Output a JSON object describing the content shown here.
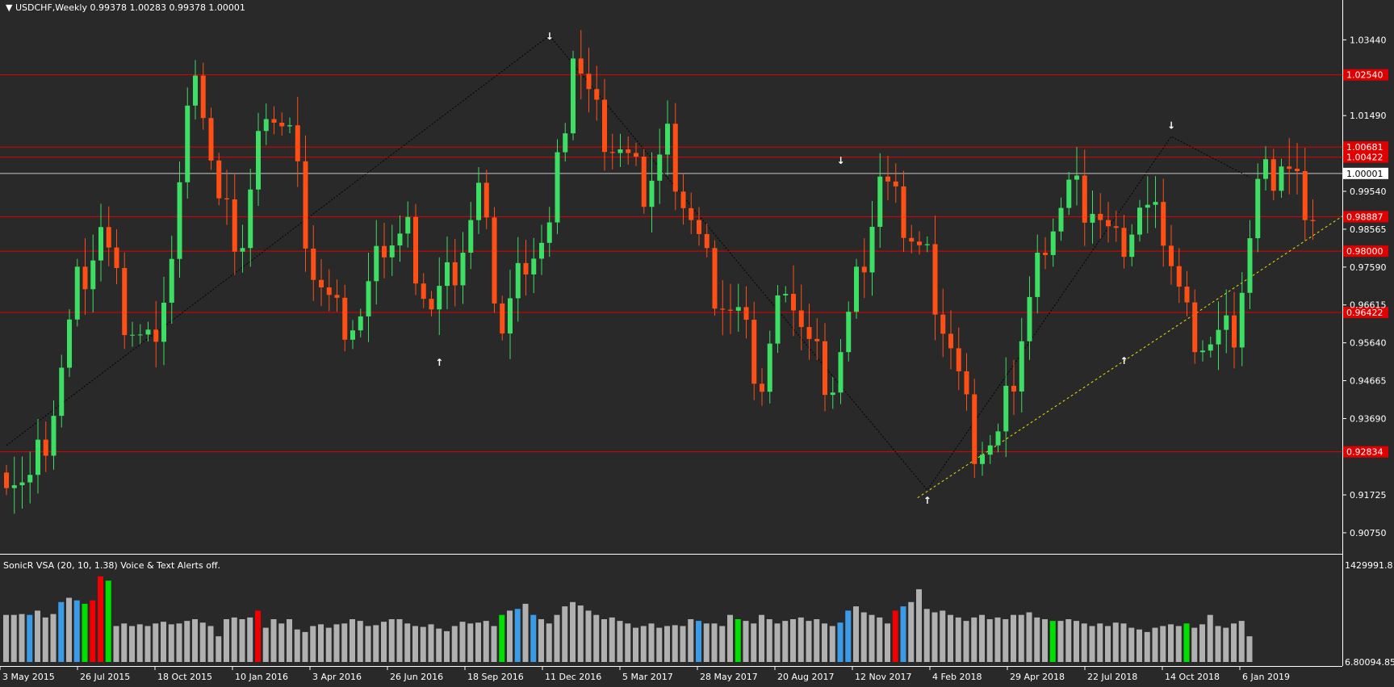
{
  "header": {
    "symbol_info": "USDCHF,Weekly  0.99378 1.00283 0.99378 1.00001"
  },
  "indicator": {
    "label": "SonicR VSA  (20, 10, 1.38)   Voice & Text Alerts off.",
    "scale_top": "1429991.8",
    "scale_bottom": "6.80094.85"
  },
  "colors": {
    "background": "#292929",
    "bull": "#3CDE63",
    "bear": "#FF4F14",
    "level_line": "#E00000",
    "level_label_bg": "#E00000",
    "price_line": "#C8C8C8",
    "volume_gray": "#B0B0B0",
    "volume_blue": "#3C9BE6",
    "volume_green": "#00E000",
    "volume_red": "#F00000",
    "trendline": "#E8E000",
    "zigzag": "#000000",
    "text": "#FFFFFF"
  },
  "chart_data": [
    {
      "type": "candlestick",
      "title": "USDCHF,Weekly",
      "ylim": [
        0.9025,
        1.0405
      ],
      "y_ticks": [
        "1.03440",
        "1.01490",
        "0.99540",
        "0.98565",
        "0.97590",
        "0.96615",
        "0.95640",
        "0.94665",
        "0.93690",
        "0.91725",
        "0.90750"
      ],
      "x_labels": [
        "3 May 2015",
        "26 Jul 2015",
        "18 Oct 2015",
        "10 Jan 2016",
        "3 Apr 2016",
        "26 Jun 2016",
        "18 Sep 2016",
        "11 Dec 2016",
        "5 Mar 2017",
        "28 May 2017",
        "20 Aug 2017",
        "12 Nov 2017",
        "4 Feb 2018",
        "29 Apr 2018",
        "22 Jul 2018",
        "14 Oct 2018",
        "6 Jan 2019"
      ],
      "anchor_closes": [
        0.925,
        0.92,
        0.94,
        0.97,
        0.985,
        0.962,
        0.955,
        0.978,
        1.03,
        0.99,
        0.982,
        1.02,
        1.01,
        0.975,
        0.962,
        0.962,
        0.982,
        0.984,
        0.965,
        0.976,
        0.994,
        0.96,
        0.98,
        0.985,
        1.032,
        1.013,
        1.005,
        0.995,
        1.008,
        0.988,
        0.97,
        0.962,
        0.945,
        0.975,
        0.955,
        0.946,
        0.97,
        0.998,
        0.987,
        0.977,
        0.955,
        0.93,
        0.93,
        0.958,
        0.985,
        0.996,
        0.992,
        0.98,
        0.99,
        0.985,
        0.962,
        0.956,
        0.96,
        0.995,
        1.003,
        0.994,
        0.986,
        0.993,
        1.0
      ],
      "current_price": "1.00001",
      "levels": [
        {
          "value": 1.0254,
          "label": "1.02540"
        },
        {
          "value": 1.00681,
          "label": "1.00681"
        },
        {
          "value": 1.00422,
          "label": "1.00422"
        },
        {
          "value": 0.98887,
          "label": "0.98887"
        },
        {
          "value": 0.98,
          "label": "0.98000"
        },
        {
          "value": 0.96422,
          "label": "0.96422"
        },
        {
          "value": 0.92834,
          "label": "0.92834"
        }
      ],
      "fractal_arrows": [
        {
          "dir": "down",
          "week": 69,
          "price": 1.0355
        },
        {
          "dir": "up",
          "week": 55,
          "price": 0.9515
        },
        {
          "dir": "down",
          "week": 106,
          "price": 1.0035
        },
        {
          "dir": "up",
          "week": 117,
          "price": 0.916
        },
        {
          "dir": "up",
          "week": 142,
          "price": 0.952
        },
        {
          "dir": "down",
          "week": 148,
          "price": 1.0125
        }
      ]
    },
    {
      "type": "bar",
      "title": "SonicR VSA",
      "volume_pattern": [
        0.55,
        0.55,
        0.56,
        0.55,
        0.6,
        0.52,
        0.56,
        0.7,
        0.75,
        0.72,
        0.68,
        0.72,
        1.0,
        0.95,
        0.42,
        0.45,
        0.42,
        0.44,
        0.42,
        0.45,
        0.47,
        0.44,
        0.45,
        0.48,
        0.5,
        0.46,
        0.42,
        0.3,
        0.5,
        0.52,
        0.5,
        0.52,
        0.6,
        0.4,
        0.5,
        0.45,
        0.5,
        0.38,
        0.35,
        0.42,
        0.44,
        0.4,
        0.44,
        0.45,
        0.5,
        0.48,
        0.42,
        0.43,
        0.47,
        0.5,
        0.5,
        0.45,
        0.42,
        0.41,
        0.44,
        0.39,
        0.36,
        0.42,
        0.47,
        0.45,
        0.46,
        0.48,
        0.42,
        0.55,
        0.6,
        0.62,
        0.68,
        0.55,
        0.5,
        0.45,
        0.55,
        0.65,
        0.7,
        0.66,
        0.6,
        0.55,
        0.5,
        0.52,
        0.48,
        0.45,
        0.4,
        0.42,
        0.45,
        0.4,
        0.42,
        0.43,
        0.42,
        0.5,
        0.48,
        0.45,
        0.45,
        0.42,
        0.55,
        0.5,
        0.48,
        0.45,
        0.55,
        0.5,
        0.45,
        0.48,
        0.5,
        0.52,
        0.48,
        0.5,
        0.45,
        0.42,
        0.46,
        0.6,
        0.65,
        0.58,
        0.55,
        0.52,
        0.45,
        0.6,
        0.65,
        0.7,
        0.85,
        0.62,
        0.58,
        0.6,
        0.55,
        0.52,
        0.48,
        0.52,
        0.55,
        0.5,
        0.52,
        0.5,
        0.55,
        0.55,
        0.58,
        0.52,
        0.5,
        0.48,
        0.48,
        0.5,
        0.48,
        0.45,
        0.42,
        0.45,
        0.42,
        0.46,
        0.45,
        0.4,
        0.38,
        0.35,
        0.4,
        0.42,
        0.44,
        0.42,
        0.45,
        0.4,
        0.44,
        0.55,
        0.42,
        0.4,
        0.45,
        0.48,
        0.3
      ],
      "blue_bars": [
        3,
        7,
        9,
        65,
        67,
        106,
        107,
        114,
        88
      ],
      "green_bars": [
        10,
        13,
        63,
        93,
        133,
        150
      ],
      "red_bars": [
        11,
        12,
        32,
        113
      ]
    }
  ]
}
